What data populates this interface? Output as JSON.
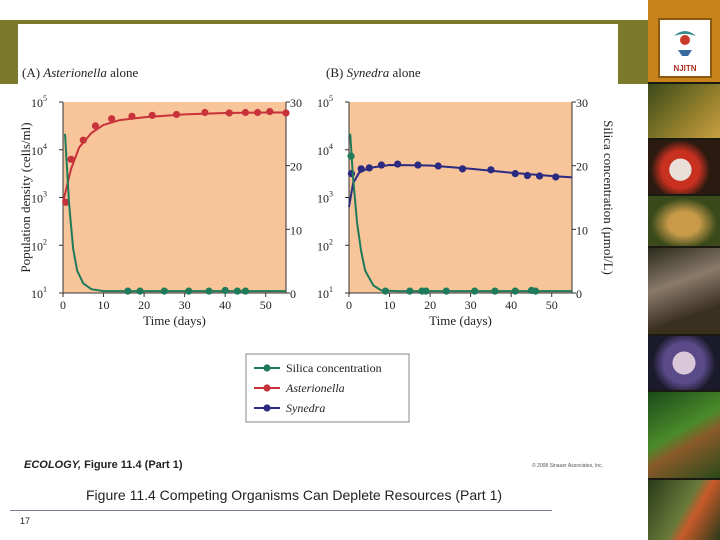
{
  "slide": {
    "caption": "Figure 11.4 Competing Organisms Can Deplete Resources (Part 1)",
    "page_number": "17",
    "logo_text": "NJITN"
  },
  "figure": {
    "caption_book": "ECOLOGY,",
    "caption_fig": "Figure 11.4 (Part 1)",
    "copyright": "© 2008 Sinauer Associates, Inc."
  },
  "colors": {
    "plot_bg": "#f8c49a",
    "silica": "#1f7a5a",
    "asterionella": "#c8323a",
    "synedra": "#2a2a80",
    "frame": "#7a7a2a",
    "side": "#1a1a12"
  },
  "legend": {
    "items": [
      {
        "label": "Silica concentration",
        "italic": false,
        "color_key": "silica"
      },
      {
        "label": "Asterionella",
        "italic": true,
        "color_key": "asterionella"
      },
      {
        "label": "Synedra",
        "italic": true,
        "color_key": "synedra"
      }
    ]
  },
  "chart_data": [
    {
      "type": "line",
      "panel_label": "(A)",
      "title": "Asterionella alone",
      "xlabel": "Time (days)",
      "ylabel": "Population density (cells/ml)",
      "y2label": "Silica concentration (µmol/L)",
      "xlim": [
        0,
        55
      ],
      "xticks": [
        0,
        10,
        20,
        30,
        40,
        50
      ],
      "ylim_log": [
        1,
        5
      ],
      "ytick_labels": [
        {
          "base": "10",
          "exp": "5",
          "log": 5
        },
        {
          "base": "10",
          "exp": "4",
          "log": 4
        },
        {
          "base": "10",
          "exp": "3",
          "log": 3
        },
        {
          "base": "10",
          "exp": "2",
          "log": 2
        },
        {
          "base": "10",
          "exp": "1",
          "log": 1
        }
      ],
      "y2lim": [
        0,
        30
      ],
      "y2ticks": [
        0,
        10,
        20,
        30
      ],
      "show_y_left": true,
      "show_y_right": true,
      "series": [
        {
          "name": "Asterionella",
          "axis": "left",
          "color_key": "asterionella",
          "points": [
            [
              0.7,
              2.9
            ],
            [
              2,
              3.8
            ],
            [
              5,
              4.2
            ],
            [
              8,
              4.5
            ],
            [
              12,
              4.65
            ],
            [
              17,
              4.7
            ],
            [
              22,
              4.72
            ],
            [
              28,
              4.74
            ],
            [
              35,
              4.78
            ],
            [
              41,
              4.77
            ],
            [
              45,
              4.78
            ],
            [
              48,
              4.78
            ],
            [
              51,
              4.8
            ],
            [
              55,
              4.77
            ]
          ],
          "curve": [
            [
              0,
              2.9
            ],
            [
              2,
              3.6
            ],
            [
              4,
              4.05
            ],
            [
              7,
              4.35
            ],
            [
              10,
              4.52
            ],
            [
              14,
              4.62
            ],
            [
              20,
              4.68
            ],
            [
              30,
              4.74
            ],
            [
              40,
              4.77
            ],
            [
              50,
              4.78
            ],
            [
              55,
              4.78
            ]
          ]
        },
        {
          "name": "Silica concentration",
          "axis": "right",
          "color_key": "silica",
          "points": [
            [
              16,
              0.3
            ],
            [
              19,
              0.3
            ],
            [
              25,
              0.3
            ],
            [
              31,
              0.3
            ],
            [
              36,
              0.3
            ],
            [
              40,
              0.4
            ],
            [
              43,
              0.3
            ],
            [
              45,
              0.3
            ]
          ],
          "curve": [
            [
              0.5,
              25
            ],
            [
              1.5,
              14
            ],
            [
              2.5,
              7
            ],
            [
              3.5,
              3.5
            ],
            [
              5,
              1.5
            ],
            [
              7,
              0.6
            ],
            [
              10,
              0.3
            ],
            [
              20,
              0.3
            ],
            [
              55,
              0.3
            ]
          ]
        }
      ]
    },
    {
      "type": "line",
      "panel_label": "(B)",
      "title": "Synedra alone",
      "xlabel": "Time (days)",
      "ylabel": "Population density (cells/ml)",
      "y2label": "Silica concentration (µmol/L)",
      "xlim": [
        0,
        55
      ],
      "xticks": [
        0,
        10,
        20,
        30,
        40,
        50
      ],
      "ylim_log": [
        1,
        5
      ],
      "ytick_labels": [
        {
          "base": "10",
          "exp": "5",
          "log": 5
        },
        {
          "base": "10",
          "exp": "4",
          "log": 4
        },
        {
          "base": "10",
          "exp": "3",
          "log": 3
        },
        {
          "base": "10",
          "exp": "2",
          "log": 2
        },
        {
          "base": "10",
          "exp": "1",
          "log": 1
        }
      ],
      "y2lim": [
        0,
        30
      ],
      "y2ticks": [
        0,
        10,
        20,
        30
      ],
      "show_y_left": true,
      "show_y_right": true,
      "series": [
        {
          "name": "Synedra",
          "axis": "left",
          "color_key": "synedra",
          "points": [
            [
              0.6,
              3.5
            ],
            [
              3,
              3.6
            ],
            [
              5,
              3.62
            ],
            [
              8,
              3.68
            ],
            [
              12,
              3.7
            ],
            [
              17,
              3.68
            ],
            [
              22,
              3.66
            ],
            [
              28,
              3.6
            ],
            [
              35,
              3.58
            ],
            [
              41,
              3.5
            ],
            [
              44,
              3.46
            ],
            [
              47,
              3.45
            ],
            [
              51,
              3.43
            ]
          ],
          "curve": [
            [
              0,
              2.8
            ],
            [
              1,
              3.3
            ],
            [
              2.5,
              3.52
            ],
            [
              5,
              3.62
            ],
            [
              10,
              3.68
            ],
            [
              20,
              3.67
            ],
            [
              30,
              3.6
            ],
            [
              40,
              3.52
            ],
            [
              50,
              3.45
            ],
            [
              55,
              3.42
            ]
          ]
        },
        {
          "name": "Silica concentration",
          "axis": "right",
          "color_key": "silica",
          "points": [
            [
              0.5,
              21.5
            ],
            [
              9,
              0.3
            ],
            [
              15,
              0.3
            ],
            [
              18,
              0.3
            ],
            [
              19,
              0.3
            ],
            [
              24,
              0.3
            ],
            [
              31,
              0.3
            ],
            [
              36,
              0.3
            ],
            [
              41,
              0.3
            ],
            [
              45,
              0.4
            ],
            [
              46,
              0.3
            ]
          ],
          "curve": [
            [
              0.3,
              25
            ],
            [
              1,
              18
            ],
            [
              2,
              11
            ],
            [
              3,
              6.5
            ],
            [
              4,
              3.5
            ],
            [
              6,
              1.2
            ],
            [
              8,
              0.4
            ],
            [
              12,
              0.3
            ],
            [
              55,
              0.3
            ]
          ]
        }
      ]
    }
  ]
}
